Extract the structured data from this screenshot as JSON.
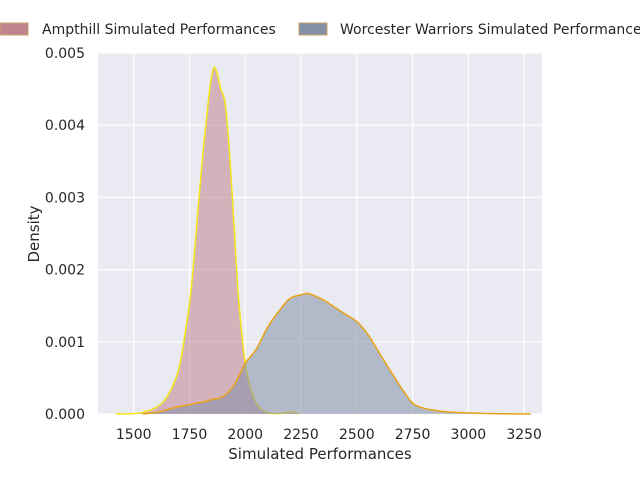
{
  "chart_data": {
    "type": "area",
    "title": "",
    "xlabel": "Simulated Performances",
    "ylabel": "Density",
    "xlim": [
      1340,
      3330
    ],
    "ylim": [
      0,
      0.005
    ],
    "xticks": [
      1500,
      1750,
      2000,
      2250,
      2500,
      2750,
      3000,
      3250
    ],
    "xtick_labels": [
      "1500",
      "1750",
      "2000",
      "2250",
      "2500",
      "2750",
      "3000",
      "3250"
    ],
    "yticks": [
      0,
      0.001,
      0.002,
      0.003,
      0.004,
      0.005
    ],
    "ytick_labels": [
      "0.000",
      "0.001",
      "0.002",
      "0.003",
      "0.004",
      "0.005"
    ],
    "grid": true,
    "legend_position": "top",
    "series": [
      {
        "name": "Ampthill Simulated Performances",
        "fill_color": "#c0848f",
        "line_color": "#f5e61a",
        "x": [
          1420,
          1500,
          1550,
          1600,
          1650,
          1700,
          1730,
          1760,
          1790,
          1810,
          1830,
          1845,
          1860,
          1875,
          1890,
          1910,
          1930,
          1950,
          1970,
          2000,
          2030,
          2060,
          2100,
          2150,
          2180,
          2200,
          2220,
          2240
        ],
        "y": [
          0,
          5e-06,
          3e-05,
          9e-05,
          0.00024,
          0.0006,
          0.0011,
          0.0018,
          0.0029,
          0.0036,
          0.0042,
          0.0046,
          0.0048,
          0.0047,
          0.0045,
          0.0043,
          0.0036,
          0.0026,
          0.0016,
          0.0007,
          0.0003,
          0.0001,
          2e-05,
          5e-06,
          2e-05,
          3e-05,
          2e-05,
          0
        ]
      },
      {
        "name": "Worcester Warriors Simulated Performances",
        "fill_color": "#8390a5",
        "line_color": "#e8a317",
        "x": [
          1540,
          1600,
          1650,
          1700,
          1750,
          1800,
          1850,
          1900,
          1950,
          2000,
          2050,
          2100,
          2150,
          2200,
          2250,
          2275,
          2300,
          2350,
          2400,
          2450,
          2500,
          2550,
          2600,
          2650,
          2700,
          2750,
          2800,
          2850,
          2900,
          3000,
          3100,
          3200,
          3280
        ],
        "y": [
          0,
          2e-05,
          6e-05,
          0.0001,
          0.00013,
          0.00016,
          0.0002,
          0.00024,
          0.0004,
          0.0007,
          0.0009,
          0.0012,
          0.00142,
          0.0016,
          0.00165,
          0.00167,
          0.00165,
          0.00158,
          0.00148,
          0.00138,
          0.00128,
          0.0011,
          0.00085,
          0.0006,
          0.00036,
          0.00015,
          8e-05,
          5e-05,
          3e-05,
          1.5e-05,
          6e-06,
          2e-06,
          0
        ]
      }
    ]
  }
}
